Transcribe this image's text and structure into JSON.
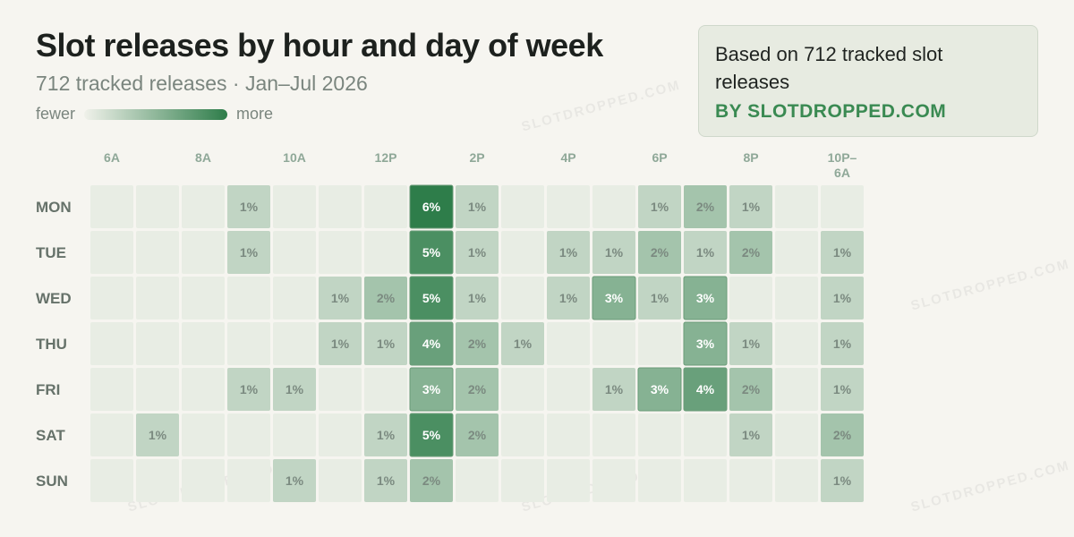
{
  "header": {
    "title": "Slot releases by hour and day of week",
    "subtitle": "712 tracked releases · Jan–Jul 2026",
    "legend_low": "fewer",
    "legend_high": "more"
  },
  "card": {
    "text": "Based on 712 tracked slot releases",
    "brand": "BY SLOTDROPPED.COM"
  },
  "watermark": "SLOTDROPPED.COM",
  "colors": {
    "background": "#f6f5f0",
    "low": "#eef0e9",
    "high": "#2e7d4a",
    "brand": "#3a8a52"
  },
  "chart_data": {
    "type": "heatmap",
    "title": "Slot releases by hour and day of week",
    "x_ticks": [
      "6A",
      "",
      "8A",
      "",
      "10A",
      "",
      "12P",
      "",
      "2P",
      "",
      "4P",
      "",
      "6P",
      "",
      "8P",
      "",
      "10P–6A"
    ],
    "rows": [
      "MON",
      "TUE",
      "WED",
      "THU",
      "FRI",
      "SAT",
      "SUN"
    ],
    "values": [
      [
        0,
        0,
        0,
        1,
        0,
        0,
        0,
        6,
        1,
        0,
        0,
        0,
        1,
        2,
        1,
        0,
        0
      ],
      [
        0,
        0,
        0,
        1,
        0,
        0,
        0,
        5,
        1,
        0,
        1,
        1,
        2,
        1,
        2,
        0,
        1
      ],
      [
        0,
        0,
        0,
        0,
        0,
        1,
        2,
        5,
        1,
        0,
        1,
        3,
        1,
        3,
        0,
        0,
        1
      ],
      [
        0,
        0,
        0,
        0,
        0,
        1,
        1,
        4,
        2,
        1,
        0,
        0,
        0,
        3,
        1,
        0,
        1
      ],
      [
        0,
        0,
        0,
        1,
        1,
        0,
        0,
        3,
        2,
        0,
        0,
        1,
        3,
        4,
        2,
        0,
        1
      ],
      [
        0,
        1,
        0,
        0,
        0,
        0,
        1,
        5,
        2,
        0,
        0,
        0,
        0,
        0,
        1,
        0,
        2
      ],
      [
        0,
        0,
        0,
        0,
        1,
        0,
        1,
        2,
        0,
        0,
        0,
        0,
        0,
        0,
        0,
        0,
        1
      ]
    ],
    "value_suffix": "%",
    "color_scale": [
      "#eef0e9",
      "#2e7d4a"
    ],
    "max": 6
  }
}
